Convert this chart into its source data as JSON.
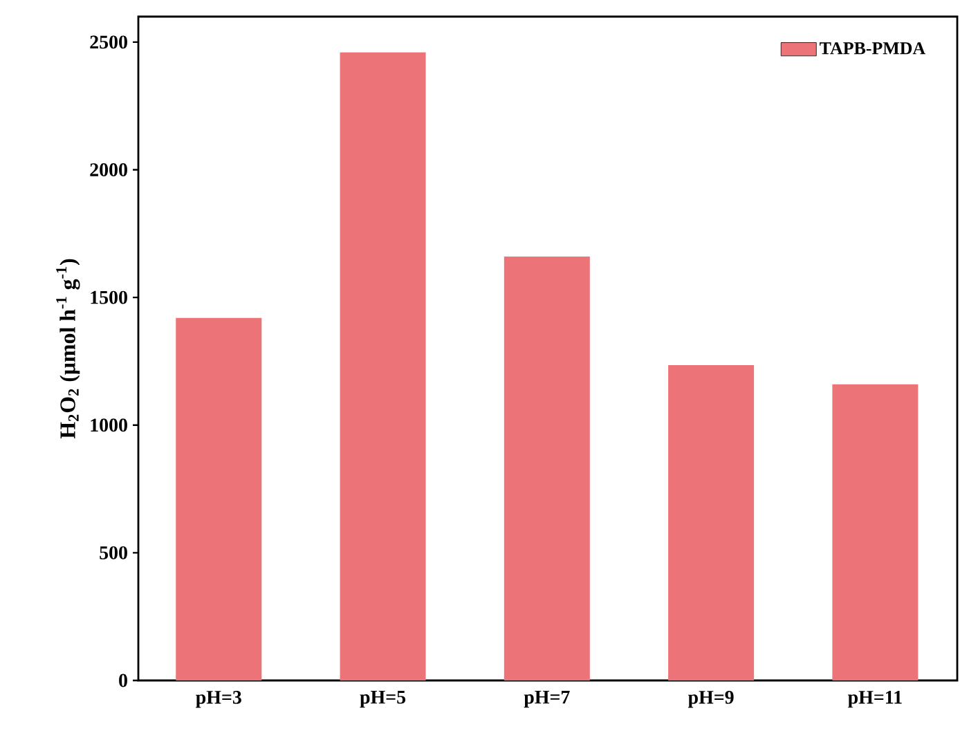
{
  "chart_data": {
    "type": "bar",
    "ylabel": "H$_{2}$O$_{2}$ (μmol h$^{-1}$ g$^{-1}$)",
    "categories": [
      "pH=3",
      "pH=5",
      "pH=7",
      "pH=9",
      "pH=11"
    ],
    "series": [
      {
        "name": "TAPB-PMDA",
        "color": "#ec7377",
        "values": [
          1420,
          2460,
          1660,
          1235,
          1160
        ]
      }
    ],
    "ylim": [
      0,
      2600
    ],
    "yticks": [
      0,
      500,
      1000,
      1500,
      2000,
      2500
    ],
    "legend": "top right",
    "grid": false
  }
}
